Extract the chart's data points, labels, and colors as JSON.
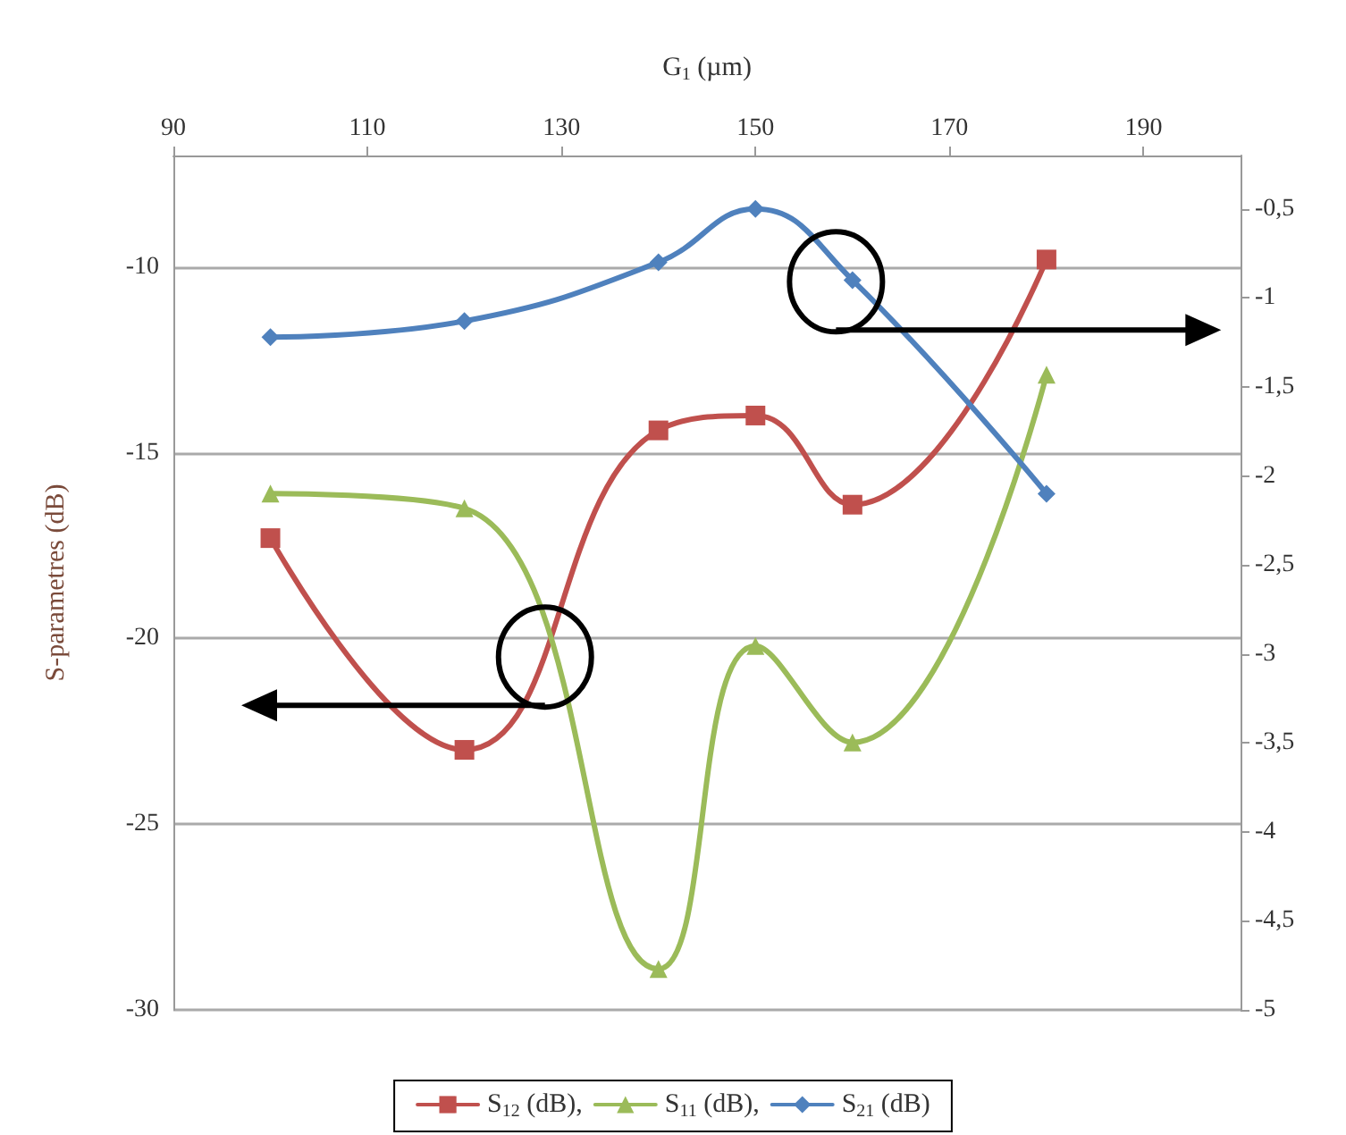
{
  "chart_data": {
    "type": "line",
    "xlabel": "G$_{1}$ (µm)",
    "ylabel": "S-parametres (dB)",
    "x": [
      100,
      120,
      140,
      150,
      160,
      180
    ],
    "xlim": [
      90,
      200
    ],
    "xticks": [
      90,
      110,
      130,
      150,
      170,
      190
    ],
    "ylim": [
      -30,
      -7
    ],
    "yticks": [
      -30,
      -25,
      -20,
      -15,
      -10
    ],
    "y2lim": [
      -5,
      -0.2
    ],
    "y2ticks": [
      {
        "value": -5,
        "label": "-5"
      },
      {
        "value": -4.5,
        "label": "-4,5"
      },
      {
        "value": -4,
        "label": "-4"
      },
      {
        "value": -3.5,
        "label": "-3,5"
      },
      {
        "value": -3,
        "label": "-3"
      },
      {
        "value": -2.5,
        "label": "-2,5"
      },
      {
        "value": -2,
        "label": "-2"
      },
      {
        "value": -1.5,
        "label": "-1,5"
      },
      {
        "value": -1,
        "label": "-1"
      },
      {
        "value": -0.5,
        "label": "-0,5"
      }
    ],
    "series": [
      {
        "name": "S$_{12}$ (dB),",
        "color": "#c0504d",
        "marker": "square",
        "values": [
          -17.3,
          -23,
          -14.4,
          -14,
          -16.4,
          -9.8
        ]
      },
      {
        "name": "S$_{11}$ (dB),",
        "color": "#9bbb59",
        "marker": "triangle",
        "values": [
          -16.1,
          -16.5,
          -28.9,
          -20.2,
          -22.8,
          -12.9
        ]
      },
      {
        "name": "S$_{21}$ (dB)",
        "color": "#4f81bd",
        "marker": "diamond",
        "axis": "y2",
        "values": [
          -1.22,
          -1.13,
          -0.8,
          -0.5,
          -0.9,
          -2.1
        ]
      }
    ],
    "grid": "y",
    "legend": "bottom",
    "line_style": "solid"
  }
}
